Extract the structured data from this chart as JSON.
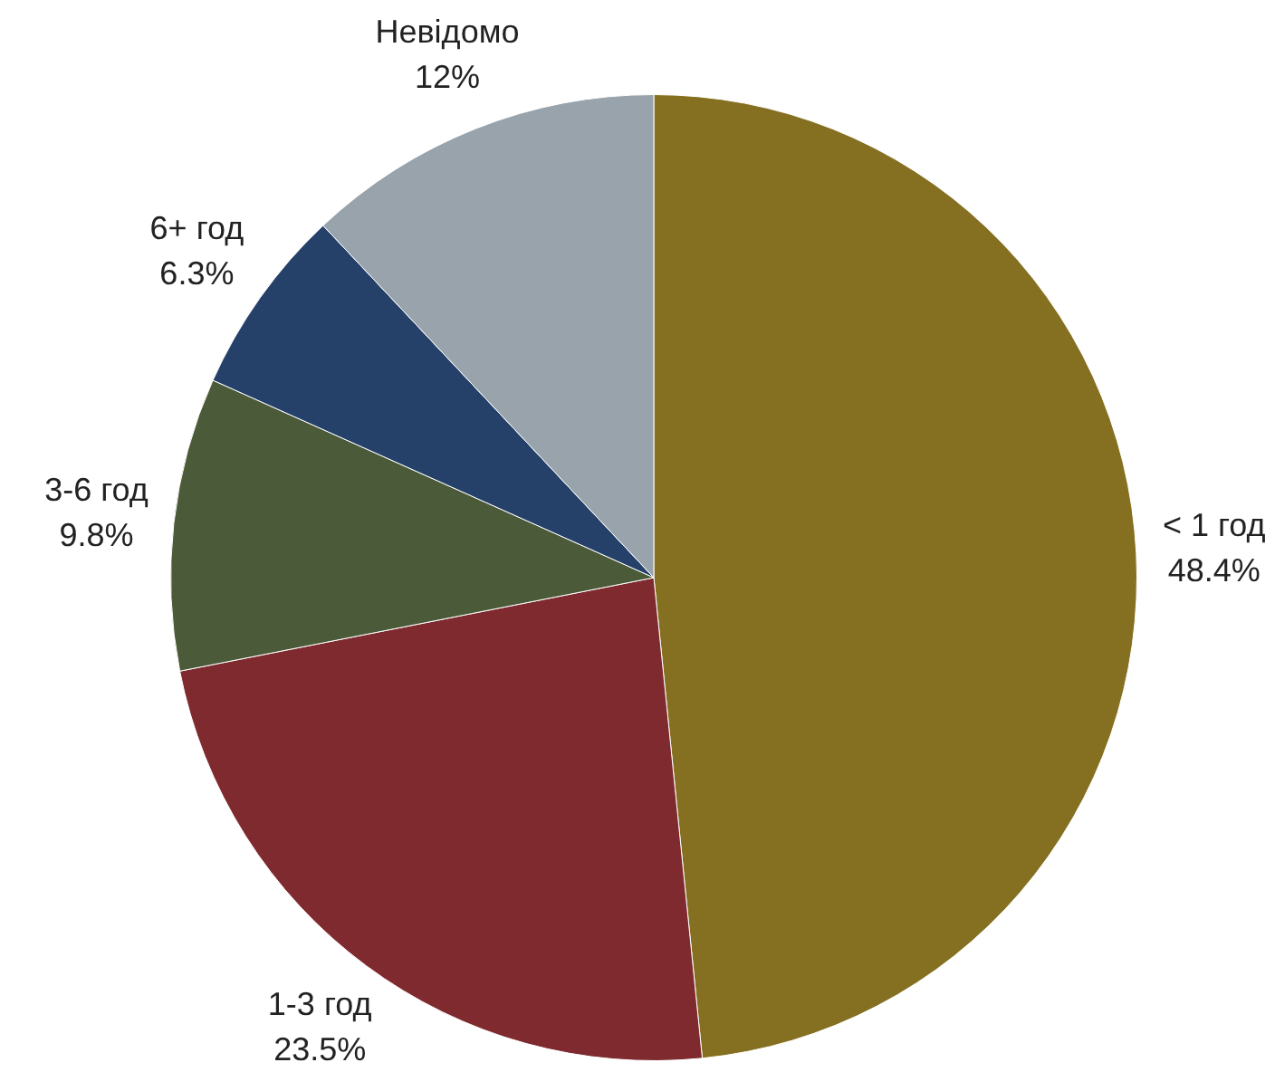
{
  "chart_data": {
    "type": "pie",
    "categories": [
      "< 1 год",
      "1-3 год",
      "3-6 год",
      "6+ год",
      "Невідомо"
    ],
    "values": [
      48.4,
      23.5,
      9.8,
      6.3,
      12
    ],
    "value_labels": [
      "48.4%",
      "23.5%",
      "9.8%",
      "6.3%",
      "12%"
    ],
    "colors": [
      "#856f20",
      "#7e2a2e",
      "#4b5a38",
      "#254169",
      "#98a3ac"
    ],
    "legend": false
  }
}
